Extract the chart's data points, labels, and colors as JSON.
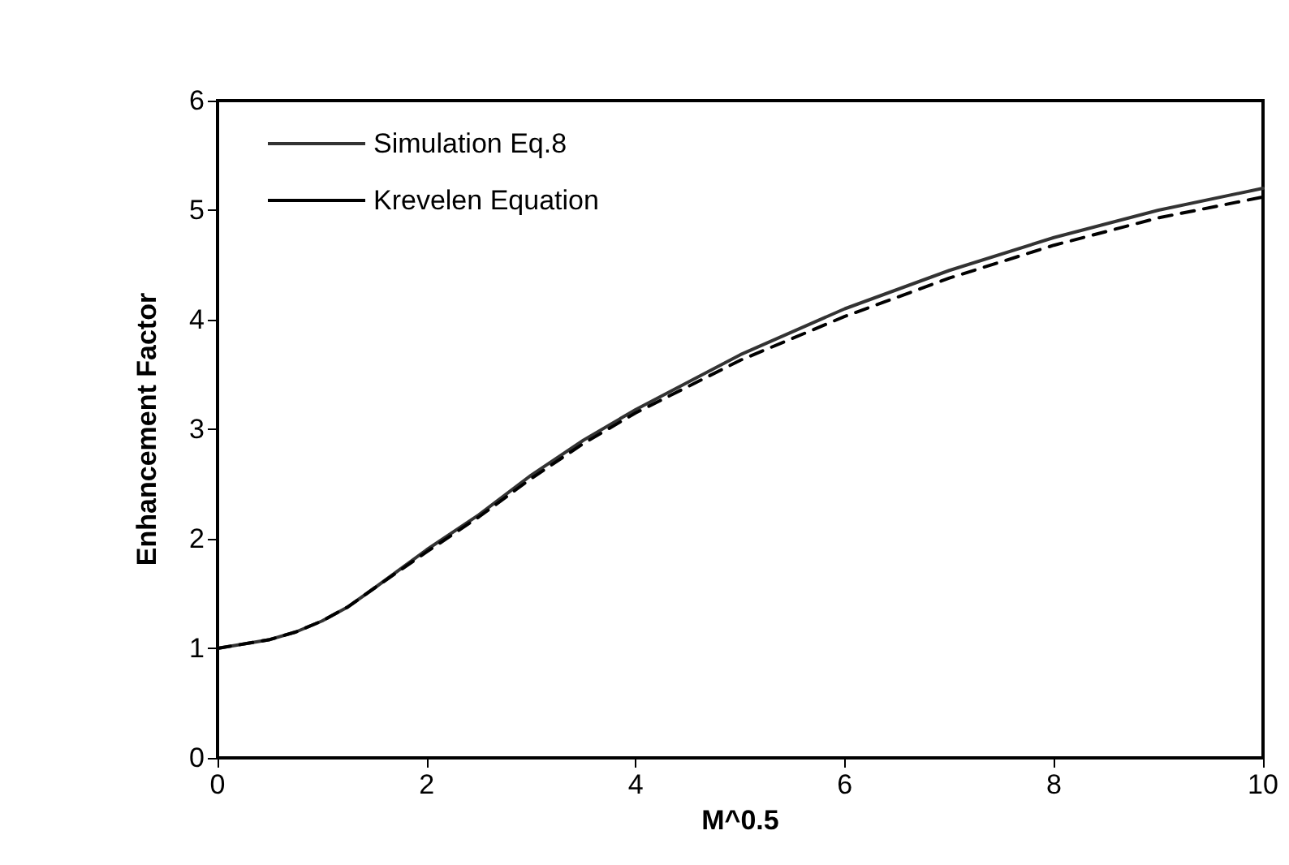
{
  "chart_data": {
    "type": "line",
    "xlabel": "M^0.5",
    "ylabel": "Enhancement Factor",
    "xlim": [
      0,
      10
    ],
    "xticks": [
      0,
      2,
      4,
      6,
      8,
      10
    ],
    "ylim": [
      0,
      6
    ],
    "yticks": [
      0,
      1,
      2,
      3,
      4,
      5,
      6
    ],
    "grid": false,
    "legend": "top left",
    "marker": "none",
    "series": [
      {
        "name": "Simulation Eq.8",
        "color": "#333333",
        "line_style": "solid",
        "x": [
          0,
          0.5,
          0.75,
          1,
          1.25,
          1.5,
          2,
          2.5,
          3,
          3.5,
          4,
          5,
          6,
          7,
          8,
          9,
          10
        ],
        "values": [
          1,
          1.08,
          1.15,
          1.25,
          1.38,
          1.55,
          1.9,
          2.22,
          2.58,
          2.9,
          3.18,
          3.68,
          4.1,
          4.45,
          4.75,
          5,
          5.2
        ]
      },
      {
        "name": "Krevelen Equation",
        "color": "#000000",
        "line_style": "dashed",
        "x": [
          0,
          0.5,
          0.75,
          1,
          1.25,
          1.5,
          2,
          2.5,
          3,
          3.5,
          4,
          5,
          6,
          7,
          8,
          9,
          10
        ],
        "values": [
          1,
          1.08,
          1.15,
          1.25,
          1.38,
          1.55,
          1.88,
          2.2,
          2.55,
          2.87,
          3.15,
          3.63,
          4.03,
          4.38,
          4.68,
          4.93,
          5.12
        ]
      }
    ]
  }
}
